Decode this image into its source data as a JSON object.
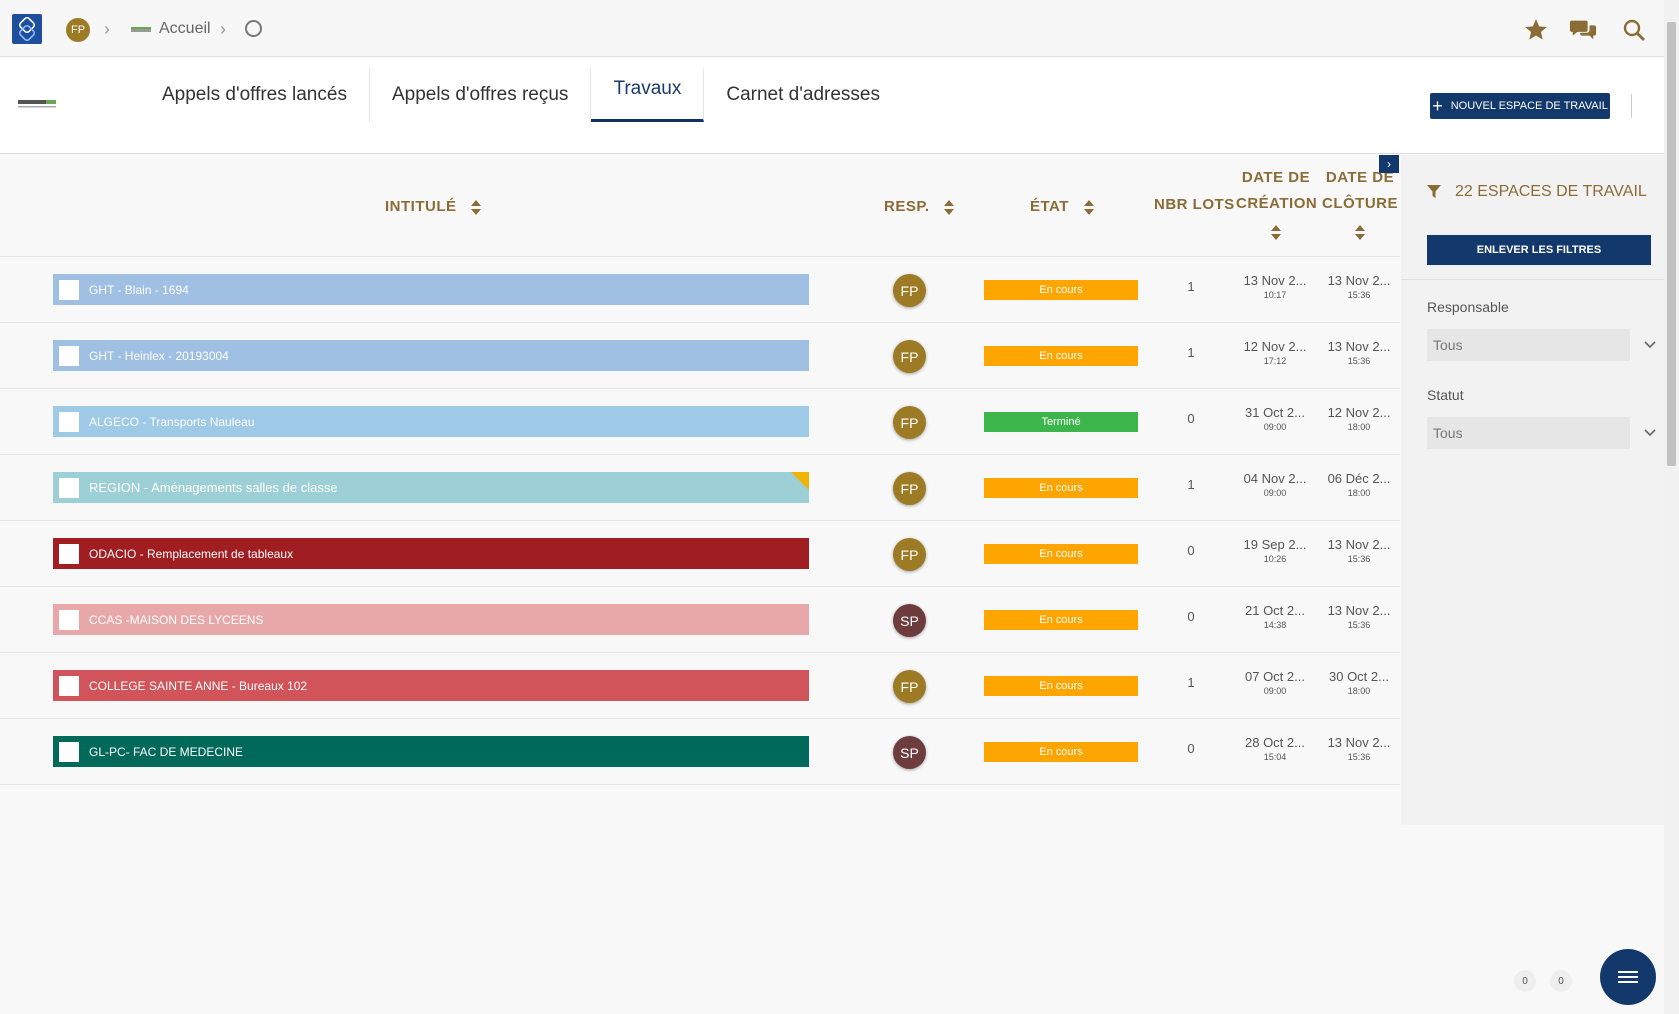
{
  "header": {
    "user_initials": "FP",
    "breadcrumb_home": "Accueil"
  },
  "tabs": [
    {
      "label": "Appels d'offres lancés"
    },
    {
      "label": "Appels d'offres reçus"
    },
    {
      "label": "Travaux"
    },
    {
      "label": "Carnet d'adresses"
    }
  ],
  "active_tab": "Travaux",
  "actions": {
    "new_workspace": "NOUVEL ESPACE DE TRAVAIL"
  },
  "columns": {
    "title": "INTITULÉ",
    "resp": "RESP.",
    "state": "ÉTAT",
    "lots": "NBR LOTS",
    "created_1": "DATE DE",
    "created_2": "CRÉATION",
    "closed_1": "DATE DE",
    "closed_2": "CLÔTURE"
  },
  "rows": [
    {
      "title": "GHT - Blain - 1694",
      "color": "#9fbfe3",
      "resp": "FP",
      "resp_color": "#9c7b24",
      "state": "En cours",
      "state_color": "#ffa500",
      "lots": "1",
      "created_date": "13 Nov 2...",
      "created_time": "10:17",
      "closed_date": "13 Nov 2...",
      "closed_time": "15:36"
    },
    {
      "title": "GHT - Heinlex - 20193004",
      "color": "#9fbfe3",
      "resp": "FP",
      "resp_color": "#9c7b24",
      "state": "En cours",
      "state_color": "#ffa500",
      "lots": "1",
      "created_date": "12 Nov 2...",
      "created_time": "17:12",
      "closed_date": "13 Nov 2...",
      "closed_time": "15:36"
    },
    {
      "title": "ALGECO - Transports Nauleau",
      "color": "#9ec9e7",
      "resp": "FP",
      "resp_color": "#9c7b24",
      "state": "Terminé",
      "state_color": "#3cb54a",
      "lots": "0",
      "created_date": "31 Oct 2...",
      "created_time": "09:00",
      "closed_date": "12 Nov 2...",
      "closed_time": "18:00"
    },
    {
      "title": "REGION - Aménagements salles de classe",
      "color": "#9ccfd6",
      "resp": "FP",
      "resp_color": "#9c7b24",
      "state": "En cours",
      "state_color": "#ffa500",
      "lots": "1",
      "created_date": "04 Nov 2...",
      "created_time": "09:00",
      "closed_date": "06 Déc 2...",
      "closed_time": "18:00"
    },
    {
      "title": "ODACIO - Remplacement de tableaux",
      "color": "#a01d22",
      "resp": "FP",
      "resp_color": "#9c7b24",
      "state": "En cours",
      "state_color": "#ffa500",
      "lots": "0",
      "created_date": "19 Sep 2...",
      "created_time": "10:26",
      "closed_date": "13 Nov 2...",
      "closed_time": "15:36"
    },
    {
      "title": "CCAS -MAISON DES LYCEENS",
      "color": "#e8a7a8",
      "resp": "SP",
      "resp_color": "#6e3c3c",
      "state": "En cours",
      "state_color": "#ffa500",
      "lots": "0",
      "created_date": "21 Oct 2...",
      "created_time": "14:38",
      "closed_date": "13 Nov 2...",
      "closed_time": "15:36"
    },
    {
      "title": "COLLEGE SAINTE ANNE - Bureaux 102",
      "color": "#d05459",
      "resp": "FP",
      "resp_color": "#9c7b24",
      "state": "En cours",
      "state_color": "#ffa500",
      "lots": "1",
      "created_date": "07 Oct 2...",
      "created_time": "09:00",
      "closed_date": "30 Oct 2...",
      "closed_time": "18:00"
    },
    {
      "title": "GL-PC- FAC DE MEDECINE",
      "color": "#00695a",
      "resp": "SP",
      "resp_color": "#6e3c3c",
      "state": "En cours",
      "state_color": "#ffa500",
      "lots": "0",
      "created_date": "28 Oct 2...",
      "created_time": "15:04",
      "closed_date": "13 Nov 2...",
      "closed_time": "15:36"
    }
  ],
  "sidebar": {
    "count_label": "22 ESPACES DE TRAVAIL",
    "clear_filters": "ENLEVER LES FILTRES",
    "filters": [
      {
        "label": "Responsable",
        "value": "Tous"
      },
      {
        "label": "Statut",
        "value": "Tous"
      }
    ]
  },
  "footer": {
    "counter_a": "0",
    "counter_b": "0"
  },
  "colors": {
    "primary": "#13386b",
    "gold": "#8b6c37"
  }
}
